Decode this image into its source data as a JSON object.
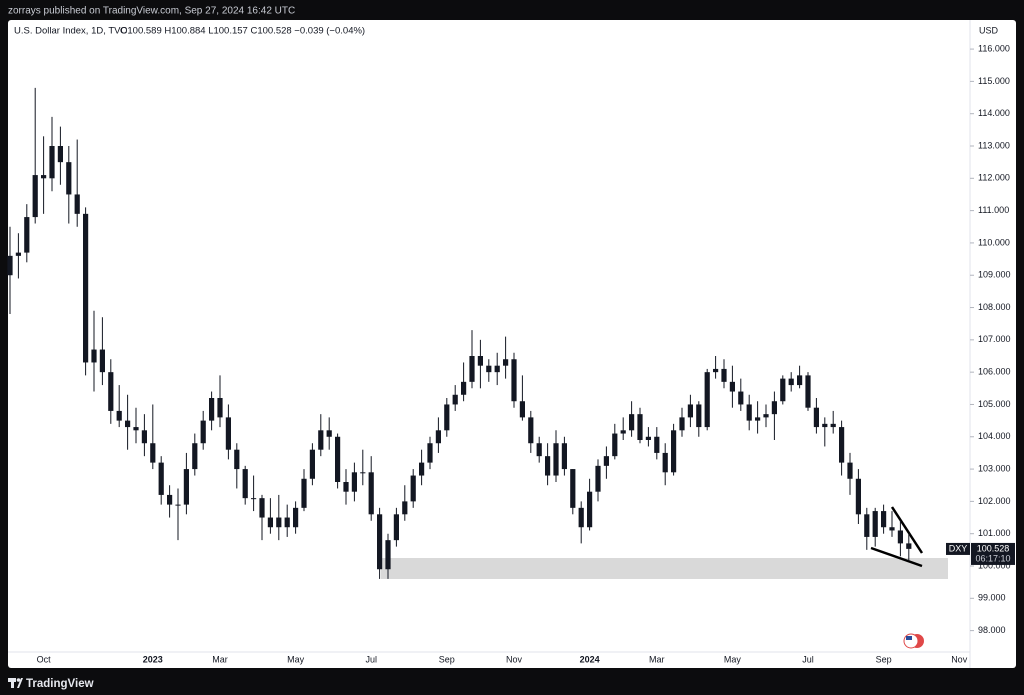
{
  "header": {
    "published": "zorrays published on TradingView.com, Sep 27, 2024 16:42 UTC"
  },
  "footer": {
    "brand": "TradingView"
  },
  "chart_data": {
    "type": "candlestick",
    "title": "U.S. Dollar Index, 1D, TVC",
    "readout": "O100.589  H100.884  L100.157  C100.528  −0.039 (−0.04%)",
    "currency": "USD",
    "color": "#131722",
    "categories": [
      null,
      null,
      null,
      null,
      "Oct",
      null,
      null,
      null,
      null,
      null,
      null,
      null,
      null,
      null,
      null,
      null,
      null,
      "2023",
      null,
      null,
      null,
      null,
      null,
      null,
      null,
      "Mar",
      null,
      null,
      null,
      null,
      null,
      null,
      null,
      null,
      "May",
      null,
      null,
      null,
      null,
      null,
      null,
      null,
      null,
      "Jul",
      null,
      null,
      null,
      null,
      null,
      null,
      null,
      null,
      "Sep",
      null,
      null,
      null,
      null,
      null,
      null,
      null,
      "Nov",
      null,
      null,
      null,
      null,
      null,
      null,
      null,
      null,
      "2024",
      null,
      null,
      null,
      null,
      null,
      null,
      null,
      "Mar",
      null,
      null,
      null,
      null,
      null,
      null,
      null,
      null,
      "May",
      null,
      null,
      null,
      null,
      null,
      null,
      null,
      null,
      "Jul",
      null,
      null,
      null,
      null,
      null,
      null,
      null,
      null,
      "Sep",
      null,
      null,
      null,
      null,
      null,
      null,
      null,
      null,
      "Nov"
    ],
    "open": [
      109.0,
      109.6,
      109.7,
      110.8,
      112.1,
      112.0,
      113.0,
      112.5,
      111.5,
      110.9,
      106.3,
      106.7,
      106.0,
      104.8,
      104.5,
      104.3,
      104.2,
      103.8,
      103.2,
      102.2,
      101.9,
      101.9,
      103.0,
      103.8,
      104.5,
      105.2,
      104.6,
      103.6,
      103.0,
      102.1,
      102.1,
      101.5,
      101.2,
      101.5,
      101.2,
      101.8,
      102.7,
      103.6,
      104.2,
      104.0,
      102.6,
      102.3,
      102.9,
      102.9,
      101.6,
      99.9,
      100.8,
      101.6,
      102.0,
      102.8,
      103.2,
      103.8,
      104.2,
      105.0,
      105.3,
      105.7,
      106.5,
      106.2,
      106.0,
      106.2,
      106.4,
      105.1,
      104.6,
      103.8,
      103.4,
      102.8,
      103.8,
      103.0,
      101.8,
      101.2,
      102.3,
      103.1,
      103.4,
      104.1,
      104.2,
      104.7,
      103.9,
      104.0,
      103.5,
      102.9,
      104.2,
      104.6,
      105.0,
      104.3,
      106.0,
      106.1,
      105.7,
      105.4,
      105.0,
      104.5,
      104.6,
      104.7,
      105.1,
      105.8,
      105.6,
      105.9,
      104.9,
      104.3,
      104.4,
      104.3,
      103.2,
      102.7,
      101.6,
      100.9,
      101.7,
      101.2,
      101.1,
      100.7,
      null,
      null,
      null,
      null,
      null,
      null
    ],
    "high": [
      110.5,
      110.3,
      111.2,
      114.8,
      113.3,
      113.9,
      113.6,
      113.0,
      113.2,
      111.1,
      107.9,
      107.7,
      106.4,
      105.6,
      105.3,
      104.9,
      104.7,
      105.0,
      103.4,
      102.5,
      102.4,
      103.5,
      104.1,
      104.8,
      105.4,
      105.9,
      105.0,
      103.8,
      103.1,
      102.8,
      102.2,
      102.1,
      102.2,
      101.9,
      102.0,
      103.0,
      103.8,
      104.7,
      104.6,
      104.1,
      103.0,
      103.2,
      103.6,
      103.4,
      101.8,
      101.0,
      101.8,
      102.5,
      103.0,
      103.6,
      104.0,
      104.6,
      105.2,
      105.6,
      106.3,
      107.3,
      107.0,
      106.4,
      106.6,
      107.1,
      106.6,
      105.9,
      104.8,
      104.0,
      103.8,
      104.2,
      104.0,
      103.0,
      102.0,
      102.7,
      103.3,
      103.7,
      104.4,
      104.6,
      105.1,
      104.9,
      104.3,
      104.3,
      103.8,
      104.4,
      104.9,
      105.3,
      105.1,
      106.1,
      106.5,
      106.4,
      106.2,
      105.8,
      105.3,
      105.1,
      105.0,
      105.4,
      105.9,
      106.0,
      106.2,
      106.0,
      105.2,
      104.6,
      104.8,
      104.5,
      103.5,
      103.0,
      101.8,
      101.8,
      101.9,
      101.7,
      101.4,
      101.0,
      null,
      null,
      null,
      null,
      null,
      null
    ],
    "low": [
      107.8,
      108.9,
      109.4,
      110.6,
      110.9,
      111.6,
      111.8,
      110.6,
      110.5,
      105.9,
      105.4,
      105.6,
      104.4,
      104.3,
      103.6,
      103.8,
      103.4,
      103.0,
      101.9,
      101.5,
      100.8,
      101.6,
      102.8,
      103.6,
      104.2,
      104.3,
      103.3,
      102.4,
      101.9,
      101.7,
      100.8,
      101.0,
      100.8,
      100.9,
      101.0,
      101.7,
      102.5,
      103.4,
      103.6,
      102.4,
      101.9,
      102.0,
      102.5,
      101.4,
      99.6,
      99.6,
      100.6,
      101.4,
      101.8,
      102.5,
      103.0,
      103.5,
      104.0,
      104.8,
      105.1,
      105.5,
      105.5,
      105.7,
      105.6,
      105.8,
      104.9,
      104.5,
      103.5,
      103.2,
      102.5,
      102.6,
      102.8,
      101.6,
      100.7,
      101.1,
      102.0,
      102.7,
      103.3,
      103.9,
      104.0,
      103.8,
      103.7,
      103.3,
      102.5,
      102.8,
      104.0,
      104.3,
      104.0,
      104.2,
      105.8,
      105.5,
      104.9,
      104.8,
      104.2,
      104.1,
      104.3,
      103.9,
      105.0,
      105.4,
      105.5,
      104.8,
      104.1,
      103.7,
      104.1,
      102.8,
      102.2,
      101.3,
      100.5,
      100.6,
      101.0,
      100.9,
      100.3,
      100.16,
      null,
      null,
      null,
      null,
      null,
      null
    ],
    "close": [
      109.6,
      109.7,
      110.8,
      112.1,
      112.0,
      113.0,
      112.5,
      111.5,
      110.9,
      106.3,
      106.7,
      106.0,
      104.8,
      104.5,
      104.3,
      104.2,
      103.8,
      103.2,
      102.2,
      101.9,
      101.9,
      103.0,
      103.8,
      104.5,
      105.2,
      104.6,
      103.6,
      103.0,
      102.1,
      102.1,
      101.5,
      101.2,
      101.5,
      101.2,
      101.8,
      102.7,
      103.6,
      104.2,
      104.0,
      102.6,
      102.3,
      102.9,
      102.9,
      101.6,
      99.9,
      100.8,
      101.6,
      102.0,
      102.8,
      103.2,
      103.8,
      104.2,
      105.0,
      105.3,
      105.7,
      106.5,
      106.2,
      106.0,
      106.2,
      106.4,
      105.1,
      104.6,
      103.8,
      103.4,
      102.8,
      103.8,
      103.0,
      101.8,
      101.2,
      102.3,
      103.1,
      103.4,
      104.1,
      104.2,
      104.7,
      103.9,
      104.0,
      103.5,
      102.9,
      104.2,
      104.6,
      105.0,
      104.3,
      106.0,
      106.1,
      105.7,
      105.4,
      105.0,
      104.5,
      104.6,
      104.7,
      105.1,
      105.8,
      105.6,
      105.9,
      104.9,
      104.3,
      104.4,
      104.3,
      103.2,
      102.7,
      101.6,
      100.9,
      101.7,
      101.2,
      101.1,
      100.7,
      100.53,
      null,
      null,
      null,
      null,
      null,
      null
    ],
    "ylim": [
      97.4,
      116.9
    ],
    "yticks": [
      {
        "value": 98,
        "label": "98.000"
      },
      {
        "value": 99,
        "label": "99.000"
      },
      {
        "value": 100,
        "label": "100.000"
      },
      {
        "value": 101,
        "label": "101.000"
      },
      {
        "value": 102,
        "label": "102.000"
      },
      {
        "value": 103,
        "label": "103.000"
      },
      {
        "value": 104,
        "label": "104.000"
      },
      {
        "value": 105,
        "label": "105.000"
      },
      {
        "value": 106,
        "label": "106.000"
      },
      {
        "value": 107,
        "label": "107.000"
      },
      {
        "value": 108,
        "label": "108.000"
      },
      {
        "value": 109,
        "label": "109.000"
      },
      {
        "value": 110,
        "label": "110.000"
      },
      {
        "value": 111,
        "label": "111.000"
      },
      {
        "value": 112,
        "label": "112.000"
      },
      {
        "value": 113,
        "label": "113.000"
      },
      {
        "value": 114,
        "label": "114.000"
      },
      {
        "value": 115,
        "label": "115.000"
      },
      {
        "value": 116,
        "label": "116.000"
      }
    ],
    "grid": false,
    "price_tag": {
      "symbol": "DXY",
      "price": 100.528,
      "countdown": "06:17:10"
    }
  }
}
